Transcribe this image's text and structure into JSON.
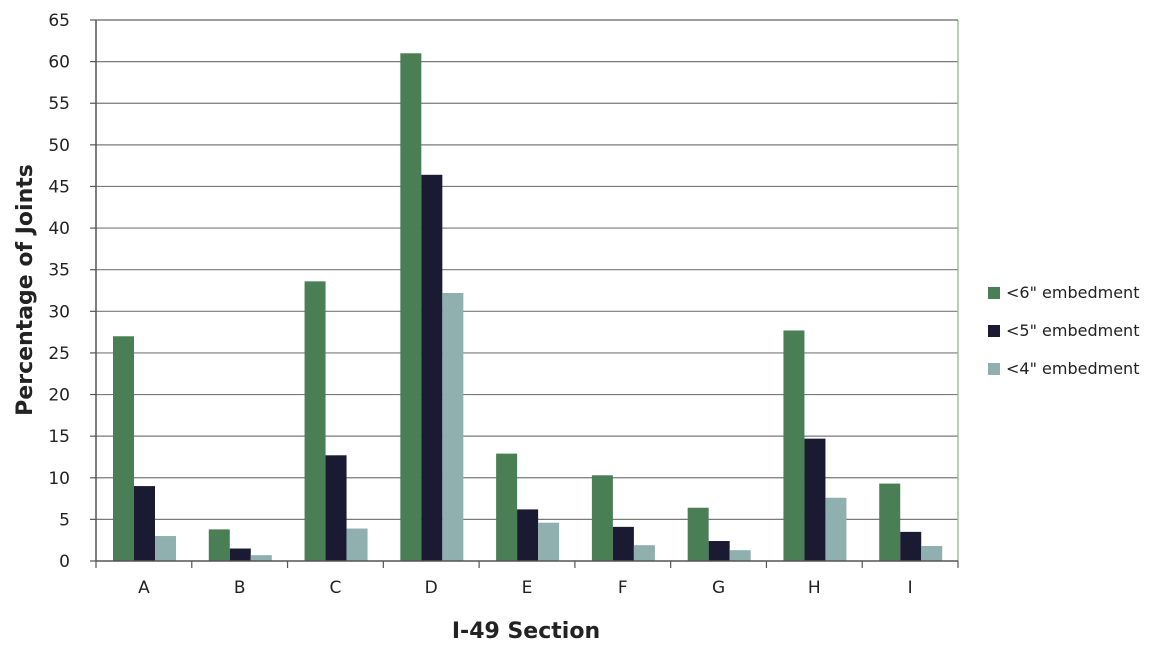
{
  "chart_data": {
    "type": "bar",
    "title": "",
    "xlabel": "I-49 Section",
    "ylabel": "Percentage of Joints",
    "ylim": [
      0,
      65
    ],
    "ytick_step": 5,
    "yticks": [
      "0",
      "5",
      "10",
      "15",
      "20",
      "25",
      "30",
      "35",
      "40",
      "45",
      "50",
      "55",
      "60",
      "65"
    ],
    "categories": [
      "A",
      "B",
      "C",
      "D",
      "E",
      "F",
      "G",
      "H",
      "I"
    ],
    "grid": true,
    "legend_position": "right",
    "series": [
      {
        "name": "<6\" embedment",
        "color": "#4a7f55",
        "values": [
          27.0,
          3.8,
          33.6,
          61.0,
          12.9,
          10.3,
          6.4,
          27.7,
          9.3
        ]
      },
      {
        "name": "<5\" embedment",
        "color": "#1b1a33",
        "values": [
          9.0,
          1.5,
          12.7,
          46.4,
          6.2,
          4.1,
          2.4,
          14.7,
          3.5
        ]
      },
      {
        "name": "<4\" embedment",
        "color": "#8fb0ae",
        "values": [
          3.0,
          0.7,
          3.9,
          32.2,
          4.6,
          1.9,
          1.3,
          7.6,
          1.8
        ]
      }
    ]
  }
}
